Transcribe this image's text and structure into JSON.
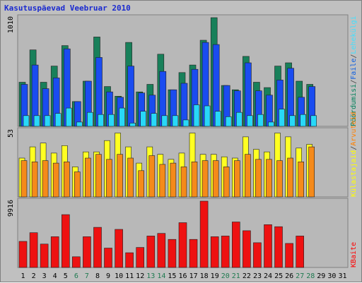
{
  "chart_data": {
    "type": "bar",
    "title": "Kasutuspäevad Veebruar 2010",
    "days": [
      "1",
      "2",
      "3",
      "4",
      "5",
      "6",
      "7",
      "8",
      "9",
      "10",
      "11",
      "12",
      "13",
      "14",
      "15",
      "16",
      "17",
      "18",
      "19",
      "20",
      "21",
      "22",
      "23",
      "24",
      "25",
      "26",
      "27",
      "28",
      "29",
      "30",
      "31"
    ],
    "weekend_days": [
      6,
      7,
      13,
      14,
      20,
      21,
      27,
      28
    ],
    "panels": [
      {
        "id": "top",
        "max_label": "1010",
        "ylim": [
          0,
          1010
        ],
        "legend": [
          {
            "text": "Pöördumisi",
            "color": "#00805a"
          },
          {
            "text": "/",
            "color": "#404040"
          },
          {
            "text": "Faile",
            "color": "#1060e0"
          },
          {
            "text": "/",
            "color": "#404040"
          },
          {
            "text": "Lehekülgi",
            "color": "#40e0ff"
          }
        ],
        "series": [
          {
            "name": "Pöördumisi",
            "color": "#18805a",
            "values": [
              410,
              710,
              410,
              560,
              750,
              230,
              420,
              830,
              370,
              280,
              780,
              320,
              390,
              670,
              340,
              500,
              570,
              800,
              1010,
              380,
              340,
              650,
              410,
              360,
              560,
              590,
              420,
              390,
              0,
              0,
              0
            ]
          },
          {
            "name": "Faile",
            "color": "#1a4cf0",
            "values": [
              390,
              570,
              350,
              450,
              720,
              230,
              420,
              640,
              320,
              270,
              560,
              310,
              290,
              510,
              340,
              400,
              530,
              780,
              760,
              380,
              330,
              590,
              330,
              290,
              430,
              540,
              270,
              370,
              0,
              0,
              0
            ]
          },
          {
            "name": "Lehekülgi",
            "color": "#28d8f8",
            "values": [
              100,
              100,
              100,
              120,
              170,
              40,
              130,
              110,
              110,
              170,
              30,
              140,
              120,
              100,
              100,
              60,
              200,
              190,
              140,
              90,
              130,
              100,
              110,
              40,
              160,
              100,
              110,
              100,
              0,
              0,
              0
            ]
          }
        ]
      },
      {
        "id": "middle",
        "max_label": "53",
        "ylim": [
          0,
          53
        ],
        "legend": [
          {
            "text": "Külastajaid",
            "color": "#ffff00"
          },
          {
            "text": "/",
            "color": "#404040"
          },
          {
            "text": "Arvuteid",
            "color": "#ff8000"
          }
        ],
        "series": [
          {
            "name": "Külastajaid",
            "color": "#ffff22",
            "values": [
              31,
              40,
              43,
              35,
              41,
              24,
              36,
              36,
              45,
              51,
              40,
              27,
              40,
              34,
              30,
              35,
              51,
              34,
              34,
              32,
              31,
              48,
              38,
              36,
              51,
              48,
              39,
              42,
              0,
              0,
              0
            ]
          },
          {
            "name": "Arvuteid",
            "color": "#f58a1a",
            "values": [
              29,
              28,
              29,
              27,
              28,
              20,
              31,
              34,
              30,
              34,
              31,
              21,
              33,
              26,
              27,
              24,
              28,
              29,
              29,
              24,
              29,
              34,
              30,
              30,
              29,
              31,
              28,
              40,
              0,
              0,
              0
            ]
          }
        ]
      },
      {
        "id": "bottom",
        "max_label": "9916",
        "ylim": [
          0,
          9916
        ],
        "legend": [
          {
            "text": "KBaite",
            "color": "#ff0000"
          }
        ],
        "series": [
          {
            "name": "KBaite",
            "color": "#ee1111",
            "values": [
              3900,
              5200,
              3500,
              4600,
              7900,
              1600,
              4600,
              6000,
              2900,
              5700,
              2200,
              3000,
              4700,
              5100,
              4200,
              6700,
              4200,
              9916,
              4600,
              4700,
              6800,
              5500,
              3700,
              6400,
              6100,
              3600,
              4700,
              0,
              0,
              0,
              0
            ]
          }
        ]
      }
    ]
  }
}
